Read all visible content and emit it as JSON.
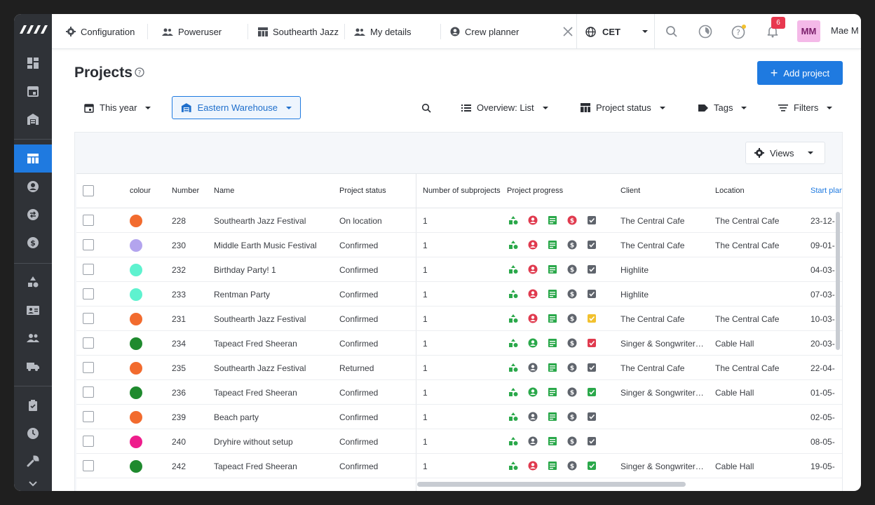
{
  "tabs": [
    {
      "icon": "gear-icon",
      "label": "Configuration"
    },
    {
      "icon": "users-icon",
      "label": "Poweruser"
    },
    {
      "icon": "table-icon",
      "label": "Southearth Jazz"
    },
    {
      "icon": "users-icon",
      "label": "My details"
    },
    {
      "icon": "user-circle-icon",
      "label": "Crew planner"
    }
  ],
  "timezone": "CET",
  "notifications_count": "6",
  "user": {
    "initials": "MM",
    "name": "Mae M"
  },
  "page": {
    "title": "Projects",
    "add_label": "Add project"
  },
  "filters": {
    "period": "This year",
    "warehouse": "Eastern Warehouse",
    "overview": "Overview: List",
    "status": "Project status",
    "tags": "Tags",
    "filters": "Filters"
  },
  "views_label": "Views",
  "columns": [
    "colour",
    "Number",
    "Name",
    "Project status",
    "Number of subprojects",
    "Project progress",
    "Client",
    "Location",
    "Start planning"
  ],
  "rows": [
    {
      "colour": "#f26b2e",
      "number": "228",
      "name": "Southearth Jazz Festival",
      "status": "On location",
      "subprojects": "1",
      "progress": [
        "#2aa84a",
        "#e03a4e",
        "#2aa84a",
        "#e03a4e",
        "#5f646c"
      ],
      "client": "The Central Cafe",
      "location": "The Central Cafe",
      "start": "23-12-"
    },
    {
      "colour": "#b3a4ee",
      "number": "230",
      "name": "Middle Earth Music Festival",
      "status": "Confirmed",
      "subprojects": "1",
      "progress": [
        "#2aa84a",
        "#e03a4e",
        "#2aa84a",
        "#5f646c",
        "#5f646c"
      ],
      "client": "The Central Cafe",
      "location": "The Central Cafe",
      "start": "09-01-"
    },
    {
      "colour": "#5ef2cf",
      "number": "232",
      "name": "Birthday Party! 1",
      "status": "Confirmed",
      "subprojects": "1",
      "progress": [
        "#2aa84a",
        "#e03a4e",
        "#2aa84a",
        "#5f646c",
        "#5f646c"
      ],
      "client": "Highlite",
      "location": "",
      "start": "04-03-"
    },
    {
      "colour": "#5ef2cf",
      "number": "233",
      "name": "Rentman Party",
      "status": "Confirmed",
      "subprojects": "1",
      "progress": [
        "#2aa84a",
        "#e03a4e",
        "#2aa84a",
        "#5f646c",
        "#5f646c"
      ],
      "client": "Highlite",
      "location": "",
      "start": "07-03-"
    },
    {
      "colour": "#f26b2e",
      "number": "231",
      "name": "Southearth Jazz Festival",
      "status": "Confirmed",
      "subprojects": "1",
      "progress": [
        "#2aa84a",
        "#e03a4e",
        "#2aa84a",
        "#5f646c",
        "#f2c12e"
      ],
      "client": "The Central Cafe",
      "location": "The Central Cafe",
      "start": "10-03-"
    },
    {
      "colour": "#1f8a2e",
      "number": "234",
      "name": "Tapeact Fred Sheeran",
      "status": "Confirmed",
      "subprojects": "1",
      "progress": [
        "#2aa84a",
        "#2aa84a",
        "#2aa84a",
        "#5f646c",
        "#e03a4e"
      ],
      "client": "Singer & Songwriter…",
      "location": "Cable Hall",
      "start": "20-03-"
    },
    {
      "colour": "#f26b2e",
      "number": "235",
      "name": "Southearth Jazz Festival",
      "status": "Returned",
      "subprojects": "1",
      "progress": [
        "#2aa84a",
        "#5f646c",
        "#2aa84a",
        "#5f646c",
        "#5f646c"
      ],
      "client": "The Central Cafe",
      "location": "The Central Cafe",
      "start": "22-04-"
    },
    {
      "colour": "#1f8a2e",
      "number": "236",
      "name": "Tapeact Fred Sheeran",
      "status": "Confirmed",
      "subprojects": "1",
      "progress": [
        "#2aa84a",
        "#2aa84a",
        "#2aa84a",
        "#5f646c",
        "#2aa84a"
      ],
      "client": "Singer & Songwriter…",
      "location": "Cable Hall",
      "start": "01-05-"
    },
    {
      "colour": "#f26b2e",
      "number": "239",
      "name": "Beach party",
      "status": "Confirmed",
      "subprojects": "1",
      "progress": [
        "#2aa84a",
        "#5f646c",
        "#2aa84a",
        "#5f646c",
        "#5f646c"
      ],
      "client": "",
      "location": "",
      "start": "02-05-"
    },
    {
      "colour": "#ee1d8c",
      "number": "240",
      "name": "Dryhire without setup",
      "status": "Confirmed",
      "subprojects": "1",
      "progress": [
        "#2aa84a",
        "#5f646c",
        "#2aa84a",
        "#5f646c",
        "#5f646c"
      ],
      "client": "",
      "location": "",
      "start": "08-05-"
    },
    {
      "colour": "#1f8a2e",
      "number": "242",
      "name": "Tapeact Fred Sheeran",
      "status": "Confirmed",
      "subprojects": "1",
      "progress": [
        "#2aa84a",
        "#e03a4e",
        "#2aa84a",
        "#5f646c",
        "#2aa84a"
      ],
      "client": "Singer & Songwriter…",
      "location": "Cable Hall",
      "start": "19-05-"
    }
  ],
  "colors": {
    "accent": "#1f7ae0",
    "sidebar": "#2f3237"
  }
}
